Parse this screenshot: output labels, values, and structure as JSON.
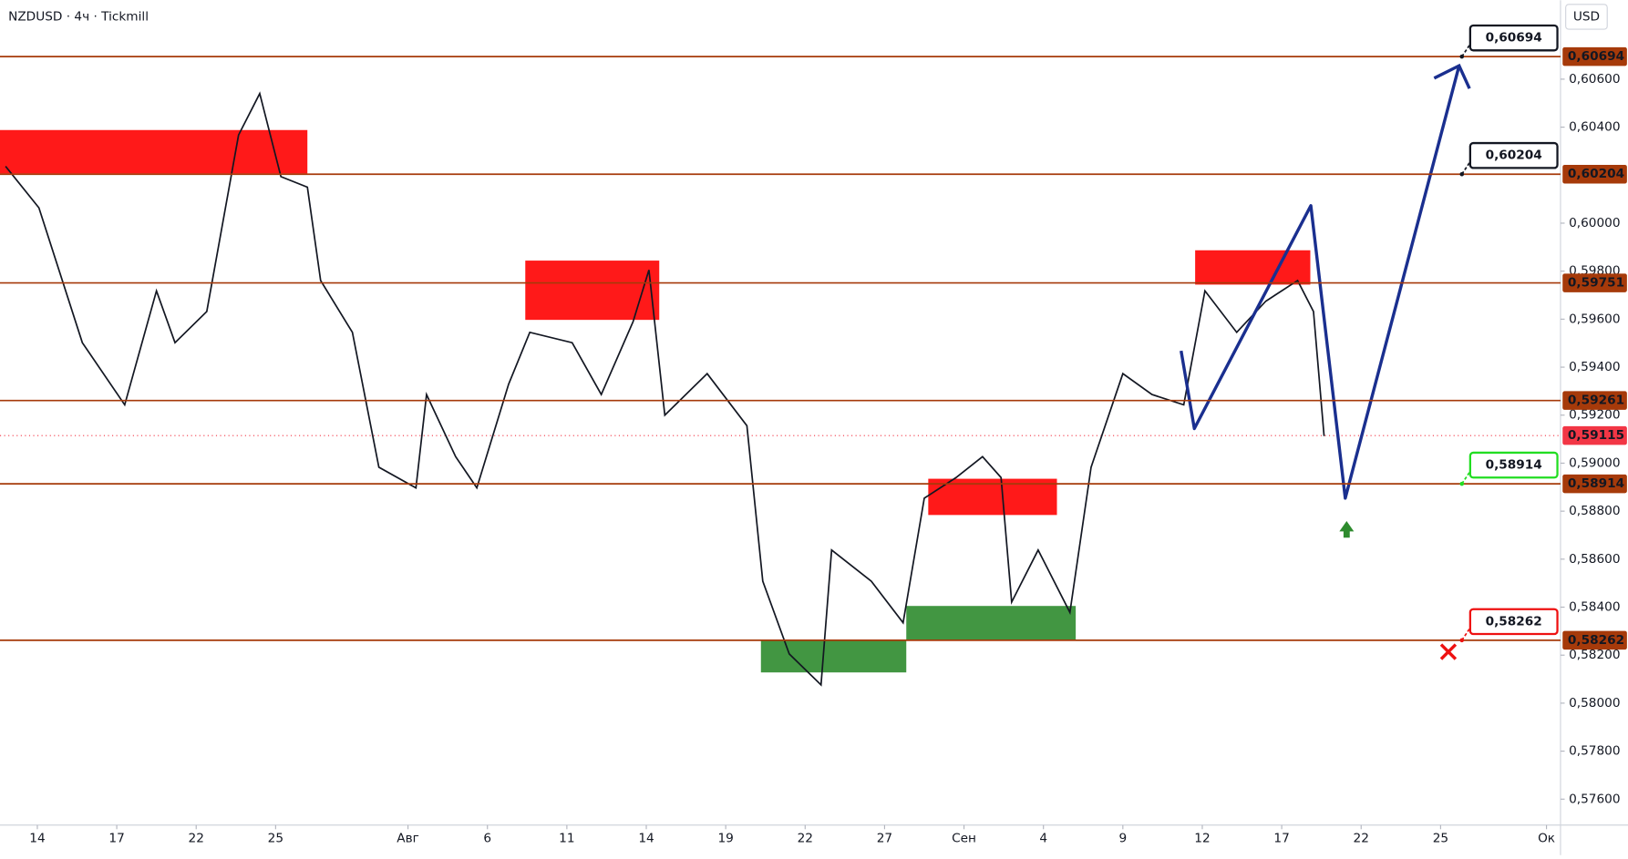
{
  "chart_data": {
    "type": "line",
    "title": "NZDUSD · 4ч · Tickmill",
    "currency": "USD",
    "color": "#131722",
    "x": [
      -1.2,
      0.06,
      1.7,
      3.3,
      4.5,
      5.2,
      6.4,
      7.6,
      8.4,
      9.2,
      10.2,
      10.7,
      11.9,
      12.9,
      14.3,
      14.7,
      15.8,
      16.6,
      17.8,
      18.6,
      20.2,
      21.3,
      22.5,
      23.1,
      23.7,
      25.3,
      26.8,
      27.4,
      28.4,
      29.6,
      30.0,
      31.5,
      32.7,
      33.5,
      34.7,
      35.7,
      36.4,
      36.8,
      37.8,
      39.0,
      39.8,
      41.0,
      42.1,
      43.3,
      44.1,
      45.3,
      46.4,
      47.6,
      48.2,
      48.6
    ],
    "values": [
      0.60237,
      0.60064,
      0.59502,
      0.59243,
      0.59718,
      0.59502,
      0.59632,
      0.60367,
      0.6054,
      0.60194,
      0.6015,
      0.59761,
      0.59545,
      0.58983,
      0.58897,
      0.59286,
      0.59027,
      0.58897,
      0.59329,
      0.59545,
      0.59502,
      0.59286,
      0.59589,
      0.59805,
      0.592,
      0.59373,
      0.59156,
      0.58508,
      0.58205,
      0.58076,
      0.58638,
      0.58508,
      0.58335,
      0.58854,
      0.5894,
      0.59027,
      0.5894,
      0.58421,
      0.58638,
      0.58378,
      0.58983,
      0.59373,
      0.59286,
      0.59243,
      0.59718,
      0.59545,
      0.59675,
      0.59761,
      0.59632,
      0.59113
    ],
    "forecast": {
      "color": "#1a2f8f",
      "x": [
        43.2,
        43.7,
        48.1,
        49.4,
        53.7
      ],
      "values": [
        0.59468,
        0.59144,
        0.60073,
        0.58854,
        0.60656
      ]
    },
    "xlim": [
      -1.41,
      57.53
    ],
    "ylim": [
      0.57492,
      0.60929
    ],
    "xticks": [
      {
        "value": 0,
        "label": "14"
      },
      {
        "value": 3,
        "label": "17"
      },
      {
        "value": 6,
        "label": "22"
      },
      {
        "value": 9,
        "label": "25"
      },
      {
        "value": 14,
        "label": "Авг"
      },
      {
        "value": 17,
        "label": "6"
      },
      {
        "value": 20,
        "label": "11"
      },
      {
        "value": 23,
        "label": "14"
      },
      {
        "value": 26,
        "label": "19"
      },
      {
        "value": 29,
        "label": "22"
      },
      {
        "value": 32,
        "label": "27"
      },
      {
        "value": 35,
        "label": "Сен"
      },
      {
        "value": 38,
        "label": "4"
      },
      {
        "value": 41,
        "label": "9"
      },
      {
        "value": 44,
        "label": "12"
      },
      {
        "value": 47,
        "label": "17"
      },
      {
        "value": 50,
        "label": "22"
      },
      {
        "value": 53,
        "label": "25"
      },
      {
        "value": 57,
        "label": "Ок"
      }
    ],
    "yticks": [
      {
        "value": 0.606,
        "label": "0,60600"
      },
      {
        "value": 0.604,
        "label": "0,60400"
      },
      {
        "value": 0.6,
        "label": "0,60000"
      },
      {
        "value": 0.598,
        "label": "0,59800"
      },
      {
        "value": 0.596,
        "label": "0,59600"
      },
      {
        "value": 0.594,
        "label": "0,59400"
      },
      {
        "value": 0.592,
        "label": "0,59200"
      },
      {
        "value": 0.59,
        "label": "0,59000"
      },
      {
        "value": 0.588,
        "label": "0,58800"
      },
      {
        "value": 0.586,
        "label": "0,58600"
      },
      {
        "value": 0.584,
        "label": "0,58400"
      },
      {
        "value": 0.582,
        "label": "0,58200"
      },
      {
        "value": 0.58,
        "label": "0,58000"
      },
      {
        "value": 0.578,
        "label": "0,57800"
      },
      {
        "value": 0.576,
        "label": "0,57600"
      }
    ],
    "level_color": "#a63a0a",
    "levels": [
      {
        "value": 0.60694,
        "label": "0,60694",
        "callout": "#131722"
      },
      {
        "value": 0.60204,
        "label": "0,60204",
        "callout": "#131722"
      },
      {
        "value": 0.59751,
        "label": "0,59751"
      },
      {
        "value": 0.59261,
        "label": "0,59261"
      },
      {
        "value": 0.58914,
        "label": "0,58914",
        "callout": "#22dd22"
      },
      {
        "value": 0.58262,
        "label": "0,58262",
        "callout": "#ee1111"
      }
    ],
    "current": {
      "value": 0.59115,
      "label": "0,59115",
      "color": "#f23645"
    },
    "zones": [
      {
        "x": [
          -1.41,
          10.2
        ],
        "y": [
          0.60207,
          0.60388
        ],
        "color": "#ff0000"
      },
      {
        "x": [
          18.43,
          23.49
        ],
        "y": [
          0.59597,
          0.59844
        ],
        "color": "#ff0000"
      },
      {
        "x": [
          33.65,
          38.51
        ],
        "y": [
          0.58784,
          0.58935
        ],
        "color": "#ff0000"
      },
      {
        "x": [
          43.73,
          48.08
        ],
        "y": [
          0.59744,
          0.59887
        ],
        "color": "#ff0000"
      },
      {
        "x": [
          27.33,
          32.82
        ],
        "y": [
          0.58128,
          0.58262
        ],
        "color": "#2e8b2e"
      },
      {
        "x": [
          32.82,
          39.22
        ],
        "y": [
          0.58262,
          0.58405
        ],
        "color": "#2e8b2e"
      }
    ]
  }
}
